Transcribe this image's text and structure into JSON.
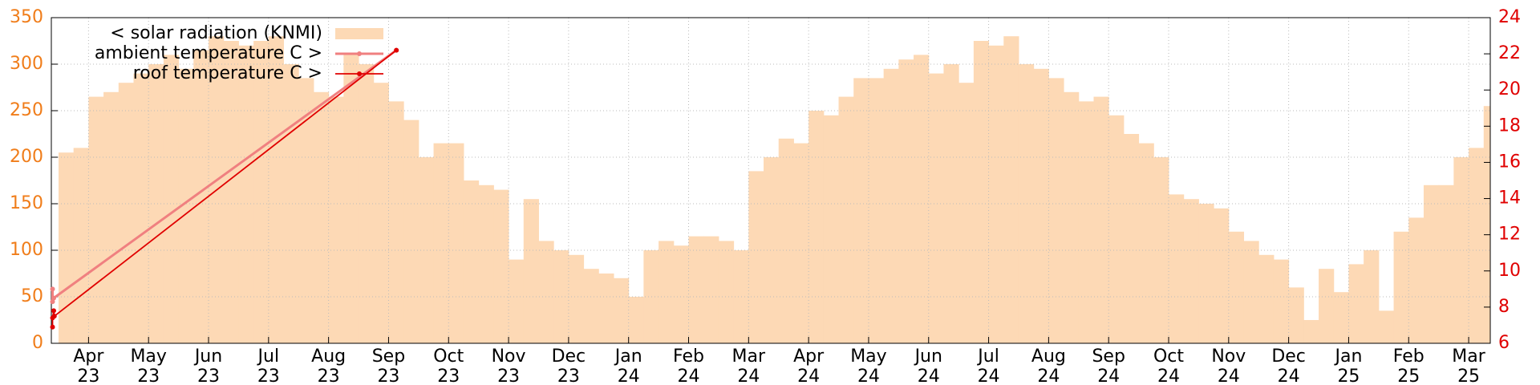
{
  "chart_data": {
    "type": "bar_line",
    "xlim": [
      -0.62,
      23.36
    ],
    "xticks": [
      {
        "value": 0,
        "label": "Apr\n23"
      },
      {
        "value": 1,
        "label": "May\n23"
      },
      {
        "value": 2,
        "label": "Jun\n23"
      },
      {
        "value": 3,
        "label": "Jul\n23"
      },
      {
        "value": 4,
        "label": "Aug\n23"
      },
      {
        "value": 5,
        "label": "Sep\n23"
      },
      {
        "value": 6,
        "label": "Oct\n23"
      },
      {
        "value": 7,
        "label": "Nov\n23"
      },
      {
        "value": 8,
        "label": "Dec\n23"
      },
      {
        "value": 9,
        "label": "Jan\n24"
      },
      {
        "value": 10,
        "label": "Feb\n24"
      },
      {
        "value": 11,
        "label": "Mar\n24"
      },
      {
        "value": 12,
        "label": "Apr\n24"
      },
      {
        "value": 13,
        "label": "May\n24"
      },
      {
        "value": 14,
        "label": "Jun\n24"
      },
      {
        "value": 15,
        "label": "Jul\n24"
      },
      {
        "value": 16,
        "label": "Aug\n24"
      },
      {
        "value": 17,
        "label": "Sep\n24"
      },
      {
        "value": 18,
        "label": "Oct\n24"
      },
      {
        "value": 19,
        "label": "Nov\n24"
      },
      {
        "value": 20,
        "label": "Dec\n24"
      },
      {
        "value": 21,
        "label": "Jan\n25"
      },
      {
        "value": 22,
        "label": "Feb\n25"
      },
      {
        "value": 23,
        "label": "Mar\n25"
      }
    ],
    "ylim": [
      0,
      350
    ],
    "yticks": [
      0,
      50,
      100,
      150,
      200,
      250,
      300,
      350
    ],
    "y_axis_color": "#f07d1a",
    "y2lim": [
      6,
      24
    ],
    "y2ticks": [
      6,
      8,
      10,
      12,
      14,
      16,
      18,
      20,
      22,
      24
    ],
    "y2_axis_color": "#e00000",
    "grid": true,
    "legend": "top-left",
    "series": [
      {
        "name": "< solar radiation (KNMI)",
        "color": "#fdd9b5",
        "kind": "bar",
        "x": [
          -0.5,
          -0.25,
          0,
          0.25,
          0.5,
          0.75,
          1,
          1.25,
          1.5,
          1.75,
          2,
          2.25,
          2.5,
          2.75,
          3,
          3.25,
          3.5,
          3.75,
          4,
          4.25,
          4.5,
          4.75,
          5,
          5.25,
          5.5,
          5.75,
          6,
          6.25,
          6.5,
          6.75,
          7,
          7.25,
          7.5,
          7.75,
          8,
          8.25,
          8.5,
          8.75,
          9,
          9.25,
          9.5,
          9.75,
          10,
          10.25,
          10.5,
          10.75,
          11,
          11.25,
          11.5,
          11.75,
          12,
          12.25,
          12.5,
          12.75,
          13,
          13.25,
          13.5,
          13.75,
          14,
          14.25,
          14.5,
          14.75,
          15,
          15.25,
          15.5,
          15.75,
          16,
          16.25,
          16.5,
          16.75,
          17,
          17.25,
          17.5,
          17.75,
          18,
          18.25,
          18.5,
          18.75,
          19,
          19.25,
          19.5,
          19.75,
          20,
          20.25,
          20.5,
          20.75,
          21,
          21.25,
          21.5,
          21.75,
          22,
          22.25,
          22.5,
          22.75,
          23,
          23.25
        ],
        "values": [
          205,
          210,
          265,
          270,
          280,
          290,
          300,
          310,
          295,
          315,
          330,
          325,
          320,
          325,
          330,
          300,
          285,
          270,
          265,
          310,
          300,
          280,
          260,
          240,
          200,
          215,
          215,
          175,
          170,
          165,
          90,
          155,
          110,
          100,
          95,
          80,
          75,
          70,
          50,
          100,
          110,
          105,
          115,
          115,
          110,
          100,
          185,
          200,
          220,
          215,
          250,
          245,
          265,
          285,
          285,
          295,
          305,
          310,
          290,
          300,
          280,
          325,
          320,
          330,
          300,
          295,
          285,
          270,
          260,
          265,
          245,
          225,
          215,
          200,
          160,
          155,
          150,
          145,
          120,
          110,
          95,
          90,
          60,
          25,
          80,
          55,
          85,
          100,
          35,
          120,
          135,
          170,
          170,
          200,
          210,
          255
        ]
      },
      {
        "name": "ambient temperature C >",
        "color": "#f08080",
        "kind": "line",
        "axis": "y2",
        "x": [
          -0.6,
          -0.6,
          -0.58,
          5.13
        ],
        "values": [
          9.0,
          8.3,
          8.5,
          22.2
        ]
      },
      {
        "name": "roof temperature C >",
        "color": "#e00000",
        "kind": "line",
        "axis": "y2",
        "x": [
          -0.6,
          -0.6,
          -0.58,
          -0.57,
          5.13
        ],
        "values": [
          6.9,
          7.4,
          7.8,
          7.5,
          22.2
        ]
      }
    ]
  }
}
